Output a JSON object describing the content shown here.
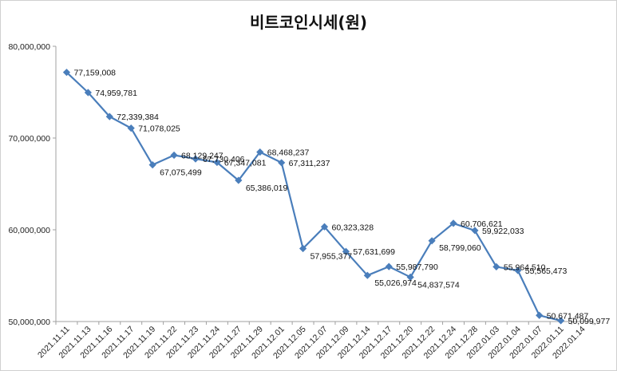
{
  "chart_data": {
    "type": "line",
    "title": "비트코인시세(원)",
    "xlabel": "",
    "ylabel": "",
    "ylim": [
      50000000,
      80000000
    ],
    "yticks": [
      50000000,
      60000000,
      70000000,
      80000000
    ],
    "ytick_labels": [
      "50,000,000",
      "60,000,000",
      "70,000,000",
      "80,000,000"
    ],
    "grid": false,
    "legend": "none",
    "series_color": "#4a7ebb",
    "categories": [
      "2021.11.11",
      "2021.11.13",
      "2021.11.16",
      "2021.11.17",
      "2021.11.19",
      "2021.11.22",
      "2021.11.23",
      "2021.11.24",
      "2021.11.27",
      "2021.11.29",
      "2021.12.01",
      "2021.12.05",
      "2021.12.07",
      "2021.12.09",
      "2021.12.14",
      "2021.12.17",
      "2021.12.20",
      "2021.12.22",
      "2021.12.24",
      "2021.12.28",
      "2022.01.03",
      "2022.01.04",
      "2022.01.07",
      "2022.01.11",
      "2022.01.14"
    ],
    "values": [
      77159008,
      74959781,
      72339384,
      71078025,
      67075499,
      68129247,
      67730406,
      67347081,
      65386019,
      68468237,
      67311237,
      57955377,
      60323328,
      57631699,
      55026974,
      55987790,
      54837574,
      58799060,
      60706621,
      59922033,
      55964510,
      55565473,
      50671487,
      50099977,
      null
    ],
    "data_labels": [
      "77,159,008",
      "74,959,781",
      "72,339,384",
      "71,078,025",
      "67,075,499",
      "68,129,247",
      "67,730,406",
      "67,347,081",
      "65,386,019",
      "68,468,237",
      "67,311,237",
      "57,955,377",
      "60,323,328",
      "57,631,699",
      "55,026,974",
      "55,987,790",
      "54,837,574",
      "58,799,060",
      "60,706,621",
      "59,922,033",
      "55,964,510",
      "55,565,473",
      "50,671,487",
      "50,099,977",
      ""
    ]
  }
}
